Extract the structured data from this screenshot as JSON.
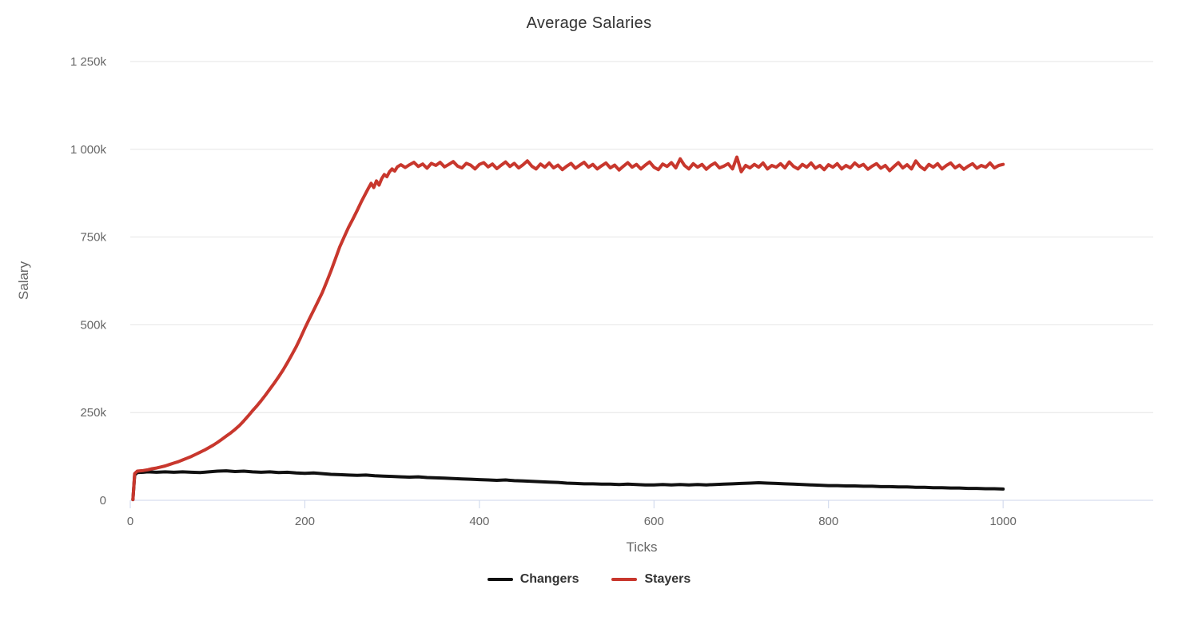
{
  "chart_data": {
    "type": "line",
    "title": "Average Salaries",
    "xlabel": "Ticks",
    "ylabel": "Salary",
    "values_unit": "thousands",
    "xlim": [
      0,
      1172
    ],
    "ylim": [
      0,
      1250
    ],
    "grid": "horizontal-only",
    "legend_position": "bottom-center",
    "grid_color": "#e6e6e6",
    "axis_line_color": "#ccd6eb",
    "label_color": "#666666",
    "title_color": "#333333",
    "x_ticks": [
      {
        "value": 0,
        "label": "0"
      },
      {
        "value": 200,
        "label": "200"
      },
      {
        "value": 400,
        "label": "400"
      },
      {
        "value": 600,
        "label": "600"
      },
      {
        "value": 800,
        "label": "800"
      },
      {
        "value": 1000,
        "label": "1000"
      }
    ],
    "y_ticks": [
      {
        "value": 0,
        "label": "0"
      },
      {
        "value": 250,
        "label": "250k"
      },
      {
        "value": 500,
        "label": "500k"
      },
      {
        "value": 750,
        "label": "750k"
      },
      {
        "value": 1000,
        "label": "1 000k"
      },
      {
        "value": 1250,
        "label": "1 250k"
      }
    ],
    "series": [
      {
        "name": "Changers",
        "color": "#111111",
        "points": [
          [
            3,
            2
          ],
          [
            5,
            72
          ],
          [
            8,
            79
          ],
          [
            15,
            80
          ],
          [
            20,
            81
          ],
          [
            30,
            80
          ],
          [
            40,
            81
          ],
          [
            50,
            80
          ],
          [
            60,
            81
          ],
          [
            70,
            80
          ],
          [
            80,
            79
          ],
          [
            90,
            81
          ],
          [
            100,
            83
          ],
          [
            110,
            84
          ],
          [
            120,
            82
          ],
          [
            130,
            83
          ],
          [
            140,
            81
          ],
          [
            150,
            80
          ],
          [
            160,
            81
          ],
          [
            170,
            79
          ],
          [
            180,
            80
          ],
          [
            190,
            78
          ],
          [
            200,
            77
          ],
          [
            210,
            78
          ],
          [
            220,
            76
          ],
          [
            230,
            74
          ],
          [
            240,
            73
          ],
          [
            250,
            72
          ],
          [
            260,
            71
          ],
          [
            270,
            72
          ],
          [
            280,
            70
          ],
          [
            290,
            69
          ],
          [
            300,
            68
          ],
          [
            310,
            67
          ],
          [
            320,
            66
          ],
          [
            330,
            67
          ],
          [
            340,
            65
          ],
          [
            350,
            64
          ],
          [
            360,
            63
          ],
          [
            370,
            62
          ],
          [
            380,
            61
          ],
          [
            390,
            60
          ],
          [
            400,
            59
          ],
          [
            410,
            58
          ],
          [
            420,
            57
          ],
          [
            430,
            58
          ],
          [
            440,
            56
          ],
          [
            450,
            55
          ],
          [
            460,
            54
          ],
          [
            470,
            53
          ],
          [
            480,
            52
          ],
          [
            490,
            51
          ],
          [
            500,
            49
          ],
          [
            510,
            48
          ],
          [
            520,
            47
          ],
          [
            530,
            47
          ],
          [
            540,
            46
          ],
          [
            550,
            46
          ],
          [
            560,
            45
          ],
          [
            570,
            46
          ],
          [
            580,
            45
          ],
          [
            590,
            44
          ],
          [
            600,
            44
          ],
          [
            610,
            45
          ],
          [
            620,
            44
          ],
          [
            630,
            45
          ],
          [
            640,
            44
          ],
          [
            650,
            45
          ],
          [
            660,
            44
          ],
          [
            670,
            45
          ],
          [
            680,
            46
          ],
          [
            690,
            47
          ],
          [
            700,
            48
          ],
          [
            710,
            49
          ],
          [
            720,
            50
          ],
          [
            730,
            49
          ],
          [
            740,
            48
          ],
          [
            750,
            47
          ],
          [
            760,
            46
          ],
          [
            770,
            45
          ],
          [
            780,
            44
          ],
          [
            790,
            43
          ],
          [
            800,
            42
          ],
          [
            810,
            42
          ],
          [
            820,
            41
          ],
          [
            830,
            41
          ],
          [
            840,
            40
          ],
          [
            850,
            40
          ],
          [
            860,
            39
          ],
          [
            870,
            39
          ],
          [
            880,
            38
          ],
          [
            890,
            38
          ],
          [
            900,
            37
          ],
          [
            910,
            37
          ],
          [
            920,
            36
          ],
          [
            930,
            36
          ],
          [
            940,
            35
          ],
          [
            950,
            35
          ],
          [
            960,
            34
          ],
          [
            970,
            34
          ],
          [
            980,
            33
          ],
          [
            990,
            33
          ],
          [
            1000,
            32
          ]
        ]
      },
      {
        "name": "Stayers",
        "color": "#c8372d",
        "points": [
          [
            3,
            2
          ],
          [
            5,
            76
          ],
          [
            8,
            83
          ],
          [
            15,
            85
          ],
          [
            20,
            87
          ],
          [
            25,
            90
          ],
          [
            30,
            92
          ],
          [
            35,
            95
          ],
          [
            40,
            98
          ],
          [
            45,
            102
          ],
          [
            50,
            106
          ],
          [
            55,
            110
          ],
          [
            60,
            115
          ],
          [
            65,
            120
          ],
          [
            70,
            125
          ],
          [
            75,
            131
          ],
          [
            80,
            137
          ],
          [
            85,
            143
          ],
          [
            90,
            150
          ],
          [
            95,
            157
          ],
          [
            100,
            165
          ],
          [
            105,
            174
          ],
          [
            110,
            183
          ],
          [
            115,
            192
          ],
          [
            120,
            202
          ],
          [
            125,
            213
          ],
          [
            130,
            226
          ],
          [
            135,
            240
          ],
          [
            140,
            255
          ],
          [
            145,
            269
          ],
          [
            150,
            284
          ],
          [
            155,
            300
          ],
          [
            160,
            317
          ],
          [
            165,
            334
          ],
          [
            170,
            352
          ],
          [
            175,
            371
          ],
          [
            180,
            392
          ],
          [
            185,
            414
          ],
          [
            190,
            437
          ],
          [
            195,
            463
          ],
          [
            200,
            490
          ],
          [
            205,
            516
          ],
          [
            210,
            541
          ],
          [
            215,
            566
          ],
          [
            220,
            592
          ],
          [
            225,
            622
          ],
          [
            230,
            654
          ],
          [
            235,
            688
          ],
          [
            240,
            722
          ],
          [
            245,
            750
          ],
          [
            250,
            777
          ],
          [
            255,
            801
          ],
          [
            260,
            826
          ],
          [
            265,
            852
          ],
          [
            270,
            876
          ],
          [
            273,
            890
          ],
          [
            276,
            903
          ],
          [
            279,
            891
          ],
          [
            282,
            910
          ],
          [
            285,
            898
          ],
          [
            288,
            916
          ],
          [
            291,
            928
          ],
          [
            294,
            922
          ],
          [
            297,
            936
          ],
          [
            300,
            944
          ],
          [
            303,
            938
          ],
          [
            306,
            950
          ],
          [
            310,
            956
          ],
          [
            315,
            948
          ],
          [
            320,
            956
          ],
          [
            325,
            963
          ],
          [
            330,
            951
          ],
          [
            335,
            958
          ],
          [
            340,
            946
          ],
          [
            345,
            960
          ],
          [
            350,
            954
          ],
          [
            355,
            963
          ],
          [
            360,
            950
          ],
          [
            365,
            957
          ],
          [
            370,
            965
          ],
          [
            375,
            952
          ],
          [
            380,
            947
          ],
          [
            385,
            960
          ],
          [
            390,
            955
          ],
          [
            395,
            944
          ],
          [
            400,
            957
          ],
          [
            405,
            962
          ],
          [
            410,
            950
          ],
          [
            415,
            958
          ],
          [
            420,
            945
          ],
          [
            425,
            955
          ],
          [
            430,
            964
          ],
          [
            435,
            951
          ],
          [
            440,
            960
          ],
          [
            445,
            947
          ],
          [
            450,
            956
          ],
          [
            455,
            967
          ],
          [
            460,
            952
          ],
          [
            465,
            944
          ],
          [
            470,
            958
          ],
          [
            475,
            949
          ],
          [
            480,
            961
          ],
          [
            485,
            947
          ],
          [
            490,
            955
          ],
          [
            495,
            942
          ],
          [
            500,
            952
          ],
          [
            505,
            960
          ],
          [
            510,
            946
          ],
          [
            515,
            955
          ],
          [
            520,
            963
          ],
          [
            525,
            949
          ],
          [
            530,
            957
          ],
          [
            535,
            944
          ],
          [
            540,
            953
          ],
          [
            545,
            961
          ],
          [
            550,
            947
          ],
          [
            555,
            955
          ],
          [
            560,
            941
          ],
          [
            565,
            952
          ],
          [
            570,
            962
          ],
          [
            575,
            949
          ],
          [
            580,
            957
          ],
          [
            585,
            944
          ],
          [
            590,
            955
          ],
          [
            595,
            964
          ],
          [
            600,
            949
          ],
          [
            605,
            942
          ],
          [
            610,
            958
          ],
          [
            615,
            951
          ],
          [
            620,
            962
          ],
          [
            625,
            947
          ],
          [
            630,
            973
          ],
          [
            635,
            954
          ],
          [
            640,
            944
          ],
          [
            645,
            959
          ],
          [
            650,
            949
          ],
          [
            655,
            957
          ],
          [
            660,
            943
          ],
          [
            665,
            954
          ],
          [
            670,
            961
          ],
          [
            675,
            947
          ],
          [
            680,
            952
          ],
          [
            685,
            959
          ],
          [
            690,
            944
          ],
          [
            695,
            978
          ],
          [
            700,
            936
          ],
          [
            705,
            954
          ],
          [
            710,
            947
          ],
          [
            715,
            957
          ],
          [
            720,
            949
          ],
          [
            725,
            961
          ],
          [
            730,
            944
          ],
          [
            735,
            954
          ],
          [
            740,
            949
          ],
          [
            745,
            959
          ],
          [
            750,
            947
          ],
          [
            755,
            964
          ],
          [
            760,
            951
          ],
          [
            765,
            944
          ],
          [
            770,
            957
          ],
          [
            775,
            949
          ],
          [
            780,
            961
          ],
          [
            785,
            946
          ],
          [
            790,
            954
          ],
          [
            795,
            942
          ],
          [
            800,
            956
          ],
          [
            805,
            949
          ],
          [
            810,
            959
          ],
          [
            815,
            944
          ],
          [
            820,
            954
          ],
          [
            825,
            947
          ],
          [
            830,
            961
          ],
          [
            835,
            951
          ],
          [
            840,
            957
          ],
          [
            845,
            943
          ],
          [
            850,
            952
          ],
          [
            855,
            959
          ],
          [
            860,
            946
          ],
          [
            865,
            954
          ],
          [
            870,
            939
          ],
          [
            875,
            951
          ],
          [
            880,
            962
          ],
          [
            885,
            947
          ],
          [
            890,
            956
          ],
          [
            895,
            944
          ],
          [
            900,
            967
          ],
          [
            905,
            951
          ],
          [
            910,
            942
          ],
          [
            915,
            957
          ],
          [
            920,
            949
          ],
          [
            925,
            959
          ],
          [
            930,
            944
          ],
          [
            935,
            954
          ],
          [
            940,
            961
          ],
          [
            945,
            947
          ],
          [
            950,
            955
          ],
          [
            955,
            943
          ],
          [
            960,
            952
          ],
          [
            965,
            959
          ],
          [
            970,
            946
          ],
          [
            975,
            954
          ],
          [
            980,
            949
          ],
          [
            985,
            961
          ],
          [
            990,
            947
          ],
          [
            995,
            954
          ],
          [
            1000,
            957
          ]
        ]
      }
    ]
  }
}
